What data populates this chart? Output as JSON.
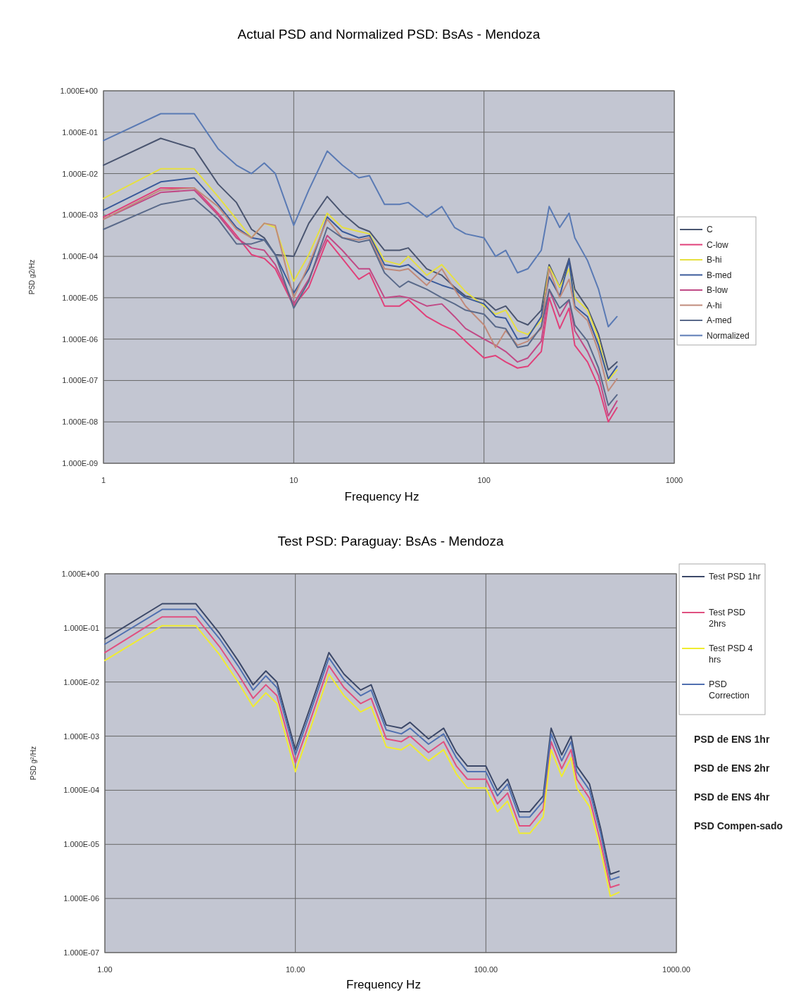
{
  "chart_data": [
    {
      "type": "line",
      "title": "Actual PSD and Normalized PSD: BsAs - Mendoza",
      "xlabel": "Frequency Hz",
      "ylabel": "PSD  g2/Hz",
      "log": "xy",
      "grid": true,
      "legend": "right",
      "x": [
        1,
        2,
        3,
        4,
        5,
        6,
        7,
        8,
        10,
        12,
        15,
        18,
        22,
        25,
        30,
        36,
        40,
        50,
        60,
        70,
        80,
        100,
        115,
        130,
        150,
        170,
        200,
        220,
        250,
        280,
        300,
        350,
        400,
        450,
        500
      ],
      "xlim": [
        1,
        1000
      ],
      "xticks": [
        1,
        10,
        100,
        1000
      ],
      "ylim": [
        1e-09,
        1
      ],
      "yticks": [
        {
          "value": 1,
          "label": "1.000E+00"
        },
        {
          "value": 0.1,
          "label": "1.000E-01"
        },
        {
          "value": 0.01,
          "label": "1.000E-02"
        },
        {
          "value": 0.001,
          "label": "1.000E-03"
        },
        {
          "value": 0.0001,
          "label": "1.000E-04"
        },
        {
          "value": 1e-05,
          "label": "1.000E-05"
        },
        {
          "value": 1e-06,
          "label": "1.000E-06"
        },
        {
          "value": 1e-07,
          "label": "1.000E-07"
        },
        {
          "value": 1e-08,
          "label": "1.000E-08"
        },
        {
          "value": 1e-09,
          "label": "1.000E-09"
        }
      ],
      "series": [
        {
          "name": "C",
          "color": "#4a5570",
          "values": [
            0.016,
            0.071,
            0.04,
            0.0056,
            0.002,
            0.00045,
            0.00028,
            0.00011,
            0.0001,
            0.00063,
            0.0028,
            0.0011,
            0.0005,
            0.0004,
            0.00014,
            0.00014,
            0.00016,
            5e-05,
            3.5e-05,
            1.8e-05,
            1.1e-05,
            8.9e-06,
            5e-06,
            6.3e-06,
            2.8e-06,
            2.2e-06,
            5e-06,
            6.3e-05,
            1.8e-05,
            8.9e-05,
            1.6e-05,
            5.6e-06,
            1.3e-06,
            1.8e-07,
            2.8e-07
          ]
        },
        {
          "name": "C-low",
          "color": "#e0407a",
          "values": [
            0.00089,
            0.0045,
            0.0045,
            0.0011,
            0.00032,
            0.00011,
            8.9e-05,
            5e-05,
            6.3e-06,
            1.8e-05,
            0.00025,
            8.9e-05,
            2.8e-05,
            4e-05,
            6.3e-06,
            6.3e-06,
            8.9e-06,
            3.5e-06,
            2.2e-06,
            1.6e-06,
            8.9e-07,
            3.5e-07,
            4e-07,
            2.8e-07,
            2e-07,
            2.2e-07,
            5e-07,
            1e-05,
            1.8e-06,
            5.6e-06,
            7.1e-07,
            2.8e-07,
            7.1e-08,
            1e-08,
            2.2e-08
          ]
        },
        {
          "name": "B-hi",
          "color": "#e6e040",
          "values": [
            0.0025,
            0.013,
            0.013,
            0.0028,
            0.00079,
            0.00028,
            0.00063,
            0.0005,
            2.5e-05,
            0.00011,
            0.0011,
            0.0005,
            0.0004,
            0.00035,
            7.9e-05,
            6.3e-05,
            0.0001,
            3.5e-05,
            6.3e-05,
            2.8e-05,
            1.4e-05,
            6.3e-06,
            4e-06,
            5e-06,
            1.6e-06,
            1.3e-06,
            2.8e-06,
            5.6e-05,
            1.8e-05,
            5e-05,
            1e-05,
            5e-06,
            1e-06,
            1e-07,
            1.8e-07
          ]
        },
        {
          "name": "B-med",
          "color": "#3a5a9a",
          "values": [
            0.0013,
            0.0063,
            0.0079,
            0.0018,
            0.0005,
            0.00028,
            0.00025,
            0.00011,
            1.3e-05,
            5e-05,
            0.00089,
            0.0004,
            0.00028,
            0.00032,
            6.3e-05,
            5.6e-05,
            6.3e-05,
            2.8e-05,
            2e-05,
            1.6e-05,
            1e-05,
            7.1e-06,
            3.5e-06,
            3.2e-06,
            1e-06,
            1.1e-06,
            3.5e-06,
            3.2e-05,
            1.1e-05,
            7.9e-05,
            6.3e-06,
            3.5e-06,
            7.1e-07,
            1.1e-07,
            2.2e-07
          ]
        },
        {
          "name": "B-low",
          "color": "#c04a86",
          "values": [
            0.00079,
            0.0035,
            0.004,
            0.001,
            0.00028,
            0.00016,
            0.00014,
            6.3e-05,
            7.1e-06,
            2.8e-05,
            0.00032,
            0.00014,
            5e-05,
            5e-05,
            1e-05,
            1.1e-05,
            1e-05,
            6.3e-06,
            7.1e-06,
            3.5e-06,
            1.8e-06,
            1e-06,
            7.1e-07,
            5e-07,
            2.8e-07,
            3.5e-07,
            8.9e-07,
            1.6e-05,
            3.5e-06,
            8.9e-06,
            1.6e-06,
            5e-07,
            1.3e-07,
            1.4e-08,
            3.2e-08
          ]
        },
        {
          "name": "A-hi",
          "color": "#c08a7a",
          "values": [
            0.00079,
            0.004,
            0.0045,
            0.0016,
            0.00045,
            0.00028,
            0.00063,
            0.00056,
            1e-05,
            6.3e-05,
            0.00079,
            0.00028,
            0.00025,
            0.00028,
            5e-05,
            4.5e-05,
            5e-05,
            2e-05,
            5e-05,
            1.6e-05,
            6.3e-06,
            2.2e-06,
            6.3e-07,
            1.6e-06,
            7.1e-07,
            8.9e-07,
            1.8e-06,
            5e-05,
            1e-05,
            2.8e-05,
            5.6e-06,
            2.8e-06,
            5e-07,
            5.6e-08,
            1.1e-07
          ]
        },
        {
          "name": "A-med",
          "color": "#5a6a8a",
          "values": [
            0.00045,
            0.0018,
            0.0025,
            0.00079,
            0.0002,
            0.0002,
            0.00025,
            0.00011,
            5.6e-06,
            2.5e-05,
            0.0005,
            0.00028,
            0.00022,
            0.00025,
            4e-05,
            1.8e-05,
            2.5e-05,
            1.6e-05,
            1e-05,
            7.1e-06,
            5e-06,
            4e-06,
            2e-06,
            1.8e-06,
            6.3e-07,
            7.1e-07,
            2e-06,
            1.6e-05,
            5.6e-06,
            8.9e-06,
            2.2e-06,
            8.9e-07,
            2e-07,
            2.5e-08,
            4.5e-08
          ]
        },
        {
          "name": "Normalized",
          "color": "#5a7ab4",
          "values": [
            0.063,
            0.28,
            0.28,
            0.04,
            0.016,
            0.01,
            0.018,
            0.01,
            0.00056,
            0.004,
            0.035,
            0.016,
            0.0079,
            0.0089,
            0.0018,
            0.0018,
            0.002,
            0.00089,
            0.0016,
            0.0005,
            0.00035,
            0.00028,
            0.0001,
            0.00014,
            4e-05,
            5e-05,
            0.00014,
            0.0016,
            0.0005,
            0.0011,
            0.00028,
            7.9e-05,
            1.6e-05,
            2e-06,
            3.5e-06
          ]
        }
      ]
    },
    {
      "type": "line",
      "title": "Test PSD: Paraguay: BsAs - Mendoza",
      "xlabel": "Frequency Hz",
      "ylabel": "PSD  g$^{2}$/Hz",
      "log": "xy",
      "grid": true,
      "legend": "right",
      "x": [
        1,
        2,
        3,
        4,
        5,
        6,
        7,
        8,
        10,
        12,
        15,
        18,
        22,
        25,
        30,
        36,
        40,
        50,
        60,
        70,
        80,
        100,
        115,
        130,
        150,
        170,
        200,
        220,
        250,
        280,
        300,
        350,
        400,
        450,
        500
      ],
      "xlim": [
        1,
        1000
      ],
      "xticks": [
        {
          "value": 1,
          "label": "1.00"
        },
        {
          "value": 10,
          "label": "10.00"
        },
        {
          "value": 100,
          "label": "100.00"
        },
        {
          "value": 1000,
          "label": "1000.00"
        }
      ],
      "ylim": [
        1e-07,
        1
      ],
      "yticks": [
        {
          "value": 1,
          "label": "1.000E+00"
        },
        {
          "value": 0.1,
          "label": "1.000E-01"
        },
        {
          "value": 0.01,
          "label": "1.000E-02"
        },
        {
          "value": 0.001,
          "label": "1.000E-03"
        },
        {
          "value": 0.0001,
          "label": "1.000E-04"
        },
        {
          "value": 1e-05,
          "label": "1.000E-05"
        },
        {
          "value": 1e-06,
          "label": "1.000E-06"
        },
        {
          "value": 1e-07,
          "label": "1.000E-07"
        }
      ],
      "annotations": [
        "PSD de ENS 1hr",
        "PSD de ENS 2hr",
        "PSD de ENS 4hr",
        "PSD Compen-sado"
      ],
      "series": [
        {
          "name": "Test PSD 1hr",
          "color": "#3c4868",
          "values": [
            0.063,
            0.28,
            0.28,
            0.079,
            0.025,
            0.0089,
            0.016,
            0.01,
            0.00056,
            0.0035,
            0.035,
            0.014,
            0.0071,
            0.0089,
            0.0016,
            0.0014,
            0.0018,
            0.00089,
            0.0014,
            0.0005,
            0.00028,
            0.00028,
            0.0001,
            0.00016,
            4e-05,
            4e-05,
            7.9e-05,
            0.0014,
            0.00045,
            0.001,
            0.00028,
            0.00013,
            2e-05,
            2.8e-06,
            3.2e-06
          ]
        },
        {
          "name": "Test PSD 2hrs",
          "color": "#e05080",
          "values": [
            0.035,
            0.16,
            0.16,
            0.045,
            0.014,
            0.005,
            0.0089,
            0.0056,
            0.00032,
            0.002,
            0.02,
            0.0079,
            0.004,
            0.005,
            0.00089,
            0.00079,
            0.001,
            0.0005,
            0.00079,
            0.00028,
            0.00016,
            0.00016,
            5.6e-05,
            8.9e-05,
            2.2e-05,
            2.2e-05,
            4.5e-05,
            0.00079,
            0.00025,
            0.00056,
            0.00016,
            7.1e-05,
            1.1e-05,
            1.6e-06,
            1.8e-06
          ]
        },
        {
          "name": "Test PSD 4 hrs",
          "color": "#f0ec30",
          "values": [
            0.025,
            0.11,
            0.11,
            0.032,
            0.01,
            0.0035,
            0.0063,
            0.004,
            0.00022,
            0.0014,
            0.014,
            0.0056,
            0.0028,
            0.0035,
            0.00063,
            0.00056,
            0.00071,
            0.00035,
            0.00056,
            0.0002,
            0.00011,
            0.00011,
            4e-05,
            6.3e-05,
            1.6e-05,
            1.6e-05,
            3.2e-05,
            0.00056,
            0.00018,
            0.0004,
            0.00011,
            5e-05,
            7.9e-06,
            1.1e-06,
            1.3e-06
          ]
        },
        {
          "name": "PSD Correction",
          "color": "#5070b0",
          "values": [
            0.05,
            0.22,
            0.22,
            0.063,
            0.02,
            0.0071,
            0.013,
            0.0079,
            0.00045,
            0.0028,
            0.028,
            0.011,
            0.0056,
            0.0071,
            0.0013,
            0.0011,
            0.0014,
            0.00071,
            0.0011,
            0.0004,
            0.00022,
            0.00022,
            7.9e-05,
            0.00013,
            3.2e-05,
            3.2e-05,
            6.3e-05,
            0.0011,
            0.00035,
            0.00079,
            0.00022,
            0.0001,
            1.6e-05,
            2.2e-06,
            2.5e-06
          ]
        }
      ]
    }
  ]
}
